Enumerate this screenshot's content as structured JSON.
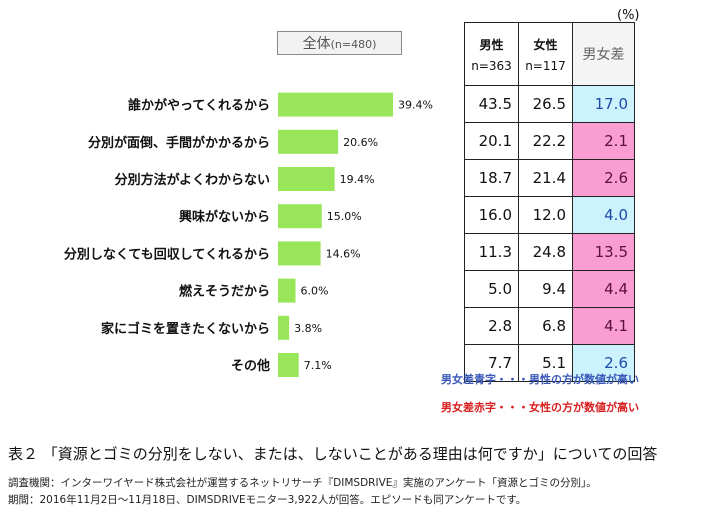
{
  "total_label": {
    "main": "全体",
    "n": "(n=480)"
  },
  "unit": "(%)",
  "chart_data": {
    "type": "bar",
    "categories": [
      "誰かがやってくれるから",
      "分別が面倒、手間がかかるから",
      "分別方法がよくわからない",
      "興味がないから",
      "分別しなくても回収してくれるから",
      "燃えそうだから",
      "家にゴミを置きたくないから",
      "その他"
    ],
    "values": [
      39.4,
      20.6,
      19.4,
      15.0,
      14.6,
      6.0,
      3.8,
      7.1
    ],
    "value_labels": [
      "39.4%",
      "20.6%",
      "19.4%",
      "15.0%",
      "14.6%",
      "6.0%",
      "3.8%",
      "7.1%"
    ],
    "bar_color": "#99e65a",
    "xlim": [
      0,
      45
    ]
  },
  "table": {
    "headers": [
      {
        "label": "男性",
        "n": "n=363"
      },
      {
        "label": "女性",
        "n": "n=117"
      },
      {
        "label": "男女差",
        "n": ""
      }
    ],
    "rows": [
      {
        "male": "43.5",
        "female": "26.5",
        "diff": "17.0",
        "color": "blue"
      },
      {
        "male": "20.1",
        "female": "22.2",
        "diff": "2.1",
        "color": "pink"
      },
      {
        "male": "18.7",
        "female": "21.4",
        "diff": "2.6",
        "color": "pink"
      },
      {
        "male": "16.0",
        "female": "12.0",
        "diff": "4.0",
        "color": "blue"
      },
      {
        "male": "11.3",
        "female": "24.8",
        "diff": "13.5",
        "color": "pink"
      },
      {
        "male": "5.0",
        "female": "9.4",
        "diff": "4.4",
        "color": "pink"
      },
      {
        "male": "2.8",
        "female": "6.8",
        "diff": "4.1",
        "color": "pink"
      },
      {
        "male": "7.7",
        "female": "5.1",
        "diff": "2.6",
        "color": "blue"
      }
    ]
  },
  "legend": {
    "blue": "男女差青字・・・男性の方が数値が高い",
    "red": "男女差赤字・・・女性の方が数値が高い"
  },
  "caption": "表２ 「資源とゴミの分別をしない、または、しないことがある理由は何ですか」についての回答",
  "footnotes": [
    "調査機関：インターワイヤード株式会社が運営するネットリサーチ『DIMSDRIVE』実施のアンケート「資源とゴミの分別」。",
    "期間：2016年11月2日～11月18日、DIMSDRIVEモニター3,922人が回答。エピソードも同アンケートです。"
  ]
}
